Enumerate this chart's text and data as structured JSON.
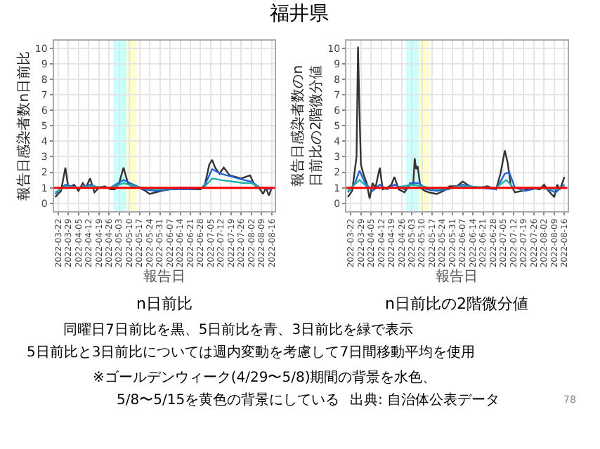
{
  "chart_data": [
    {
      "type": "line",
      "title": "福井県",
      "subtitle": "n日前比",
      "xlabel": "報告日",
      "ylabel": "報告日感染者数n日前比",
      "xlim": [
        "2022-03-19",
        "2022-08-18"
      ],
      "ylim": [
        -0.5,
        10.5
      ],
      "yticks": [
        0,
        1,
        2,
        3,
        4,
        5,
        6,
        7,
        8,
        9,
        10
      ],
      "xticks": [
        "2022-03-22",
        "2022-03-29",
        "2022-04-05",
        "2022-04-12",
        "2022-04-19",
        "2022-04-26",
        "2022-05-03",
        "2022-05-10",
        "2022-05-17",
        "2022-05-24",
        "2022-05-31",
        "2022-06-07",
        "2022-06-14",
        "2022-06-21",
        "2022-06-28",
        "2022-07-05",
        "2022-07-12",
        "2022-07-19",
        "2022-07-26",
        "2022-08-02",
        "2022-08-09",
        "2022-08-16"
      ],
      "grid": true,
      "bands": [
        {
          "axis": "x",
          "from": "2022-04-29",
          "to": "2022-05-08",
          "color": "#ccffff"
        },
        {
          "axis": "x",
          "from": "2022-05-08",
          "to": "2022-05-15",
          "color": "#ffffcc"
        }
      ],
      "ref_lines": [
        {
          "axis": "y",
          "value": 1,
          "color": "#ff0000"
        }
      ],
      "series": [
        {
          "color": "#333333",
          "x": [
            "2022-03-20",
            "2022-03-24",
            "2022-03-27",
            "2022-03-29",
            "2022-04-02",
            "2022-04-05",
            "2022-04-08",
            "2022-04-10",
            "2022-04-13",
            "2022-04-16",
            "2022-04-19",
            "2022-04-23",
            "2022-04-27",
            "2022-04-30",
            "2022-05-03",
            "2022-05-06",
            "2022-05-09",
            "2022-05-13",
            "2022-05-17",
            "2022-05-21",
            "2022-05-24",
            "2022-05-28",
            "2022-06-01",
            "2022-06-07",
            "2022-06-14",
            "2022-06-21",
            "2022-06-28",
            "2022-07-01",
            "2022-07-04",
            "2022-07-06",
            "2022-07-08",
            "2022-07-11",
            "2022-07-14",
            "2022-07-18",
            "2022-07-22",
            "2022-07-26",
            "2022-07-29",
            "2022-08-01",
            "2022-08-04",
            "2022-08-08",
            "2022-08-10",
            "2022-08-12",
            "2022-08-14",
            "2022-08-16"
          ],
          "values": [
            0.4,
            0.8,
            2.3,
            1.0,
            1.2,
            0.8,
            1.3,
            1.0,
            1.6,
            0.7,
            1.0,
            1.1,
            0.9,
            0.9,
            1.3,
            2.3,
            1.3,
            1.0,
            1.0,
            0.8,
            0.6,
            0.7,
            0.8,
            0.9,
            1.0,
            0.9,
            0.9,
            1.2,
            2.5,
            2.8,
            2.3,
            1.9,
            2.3,
            1.8,
            1.7,
            1.6,
            1.7,
            1.8,
            1.2,
            0.9,
            0.6,
            1.0,
            0.5,
            1.0
          ]
        },
        {
          "color": "#2166ce",
          "x": [
            "2022-03-20",
            "2022-03-27",
            "2022-04-05",
            "2022-04-13",
            "2022-04-19",
            "2022-04-27",
            "2022-05-06",
            "2022-05-13",
            "2022-05-20",
            "2022-05-28",
            "2022-06-07",
            "2022-06-21",
            "2022-06-30",
            "2022-07-06",
            "2022-07-12",
            "2022-07-20",
            "2022-07-28",
            "2022-08-02",
            "2022-08-08",
            "2022-08-16"
          ],
          "values": [
            0.6,
            1.2,
            1.0,
            1.2,
            1.0,
            1.0,
            1.5,
            1.2,
            0.9,
            0.8,
            0.9,
            0.9,
            1.0,
            2.2,
            1.9,
            1.7,
            1.5,
            1.4,
            1.0,
            0.9
          ]
        },
        {
          "color": "#20b2aa",
          "x": [
            "2022-03-20",
            "2022-03-27",
            "2022-04-05",
            "2022-04-13",
            "2022-04-27",
            "2022-05-06",
            "2022-05-13",
            "2022-05-20",
            "2022-05-28",
            "2022-06-14",
            "2022-06-30",
            "2022-07-06",
            "2022-07-12",
            "2022-07-20",
            "2022-07-28",
            "2022-08-02",
            "2022-08-08",
            "2022-08-16"
          ],
          "values": [
            0.7,
            1.1,
            1.0,
            1.1,
            1.0,
            1.3,
            1.1,
            1.0,
            0.9,
            1.0,
            1.0,
            1.6,
            1.5,
            1.4,
            1.3,
            1.3,
            1.0,
            1.0
          ]
        }
      ]
    },
    {
      "type": "line",
      "title": "n日前比の2階微分値",
      "xlabel": "報告日",
      "ylabel": "報告日感染者数のn日前比の2階微分値",
      "xlim": [
        "2022-03-19",
        "2022-08-18"
      ],
      "ylim": [
        -0.5,
        10.5
      ],
      "yticks": [
        0,
        1,
        2,
        3,
        4,
        5,
        6,
        7,
        8,
        9,
        10
      ],
      "xticks": [
        "2022-03-22",
        "2022-03-29",
        "2022-04-05",
        "2022-04-12",
        "2022-04-19",
        "2022-04-26",
        "2022-05-03",
        "2022-05-10",
        "2022-05-17",
        "2022-05-24",
        "2022-05-31",
        "2022-06-07",
        "2022-06-14",
        "2022-06-21",
        "2022-06-28",
        "2022-07-05",
        "2022-07-12",
        "2022-07-19",
        "2022-07-26",
        "2022-08-02",
        "2022-08-09",
        "2022-08-16"
      ],
      "grid": true,
      "bands": [
        {
          "axis": "x",
          "from": "2022-04-29",
          "to": "2022-05-08",
          "color": "#ccffff"
        },
        {
          "axis": "x",
          "from": "2022-05-08",
          "to": "2022-05-15",
          "color": "#ffffcc"
        }
      ],
      "ref_lines": [
        {
          "axis": "y",
          "value": 1,
          "color": "#ff0000"
        }
      ],
      "series": [
        {
          "color": "#333333",
          "x": [
            "2022-03-20",
            "2022-03-23",
            "2022-03-26",
            "2022-03-27",
            "2022-03-28",
            "2022-03-29",
            "2022-03-31",
            "2022-04-02",
            "2022-04-04",
            "2022-04-06",
            "2022-04-08",
            "2022-04-11",
            "2022-04-13",
            "2022-04-16",
            "2022-04-19",
            "2022-04-21",
            "2022-04-24",
            "2022-04-28",
            "2022-05-02",
            "2022-05-04",
            "2022-05-05",
            "2022-05-06",
            "2022-05-07",
            "2022-05-09",
            "2022-05-12",
            "2022-05-15",
            "2022-05-20",
            "2022-05-25",
            "2022-05-29",
            "2022-06-03",
            "2022-06-07",
            "2022-06-12",
            "2022-06-18",
            "2022-06-24",
            "2022-06-30",
            "2022-07-03",
            "2022-07-06",
            "2022-07-08",
            "2022-07-10",
            "2022-07-13",
            "2022-07-18",
            "2022-07-24",
            "2022-07-30",
            "2022-08-02",
            "2022-08-05",
            "2022-08-09",
            "2022-08-11",
            "2022-08-13",
            "2022-08-16"
          ],
          "values": [
            0.4,
            0.8,
            3.0,
            10.1,
            6.0,
            2.5,
            1.8,
            1.3,
            0.3,
            1.3,
            1.0,
            2.3,
            0.9,
            1.0,
            1.2,
            1.7,
            0.9,
            0.7,
            1.3,
            1.2,
            2.9,
            2.2,
            2.4,
            1.0,
            0.8,
            0.7,
            0.6,
            0.8,
            1.1,
            1.1,
            1.4,
            1.1,
            1.0,
            1.1,
            0.9,
            1.9,
            3.4,
            2.6,
            1.2,
            0.7,
            0.8,
            1.0,
            0.9,
            1.2,
            0.8,
            0.4,
            1.2,
            0.9,
            1.7
          ]
        },
        {
          "color": "#2166ce",
          "x": [
            "2022-03-20",
            "2022-03-25",
            "2022-03-28",
            "2022-04-01",
            "2022-04-06",
            "2022-04-11",
            "2022-04-16",
            "2022-04-21",
            "2022-04-28",
            "2022-05-03",
            "2022-05-08",
            "2022-05-13",
            "2022-05-20",
            "2022-05-28",
            "2022-06-07",
            "2022-06-18",
            "2022-06-30",
            "2022-07-06",
            "2022-07-09",
            "2022-07-13",
            "2022-07-20",
            "2022-07-30",
            "2022-08-05",
            "2022-08-10",
            "2022-08-16"
          ],
          "values": [
            0.7,
            1.3,
            2.1,
            1.3,
            0.8,
            1.2,
            0.9,
            1.2,
            0.9,
            1.3,
            1.3,
            0.9,
            0.8,
            0.9,
            1.2,
            1.0,
            0.9,
            1.9,
            2.0,
            1.0,
            0.8,
            1.0,
            0.9,
            0.7,
            1.2
          ]
        },
        {
          "color": "#20b2aa",
          "x": [
            "2022-03-20",
            "2022-03-28",
            "2022-04-03",
            "2022-04-21",
            "2022-05-03",
            "2022-05-10",
            "2022-05-20",
            "2022-06-07",
            "2022-06-30",
            "2022-07-07",
            "2022-07-12",
            "2022-07-25",
            "2022-08-10",
            "2022-08-16"
          ],
          "values": [
            0.8,
            1.5,
            1.0,
            1.0,
            1.2,
            1.1,
            0.9,
            1.1,
            1.0,
            1.5,
            1.0,
            1.0,
            0.9,
            1.1
          ]
        }
      ],
      "annotations": [
        "同曜日7日前比を黒、5日前比を青、3日前比を緑で表示",
        "5日前比と3日前比については週内変動を考慮して7日間移動平均を使用",
        "※ゴールデンウィーク(4/29〜5/8)期間の背景を水色、",
        "5/8〜5/15を黄色の背景にしている",
        "出典: 自治体公表データ",
        "78"
      ]
    }
  ]
}
